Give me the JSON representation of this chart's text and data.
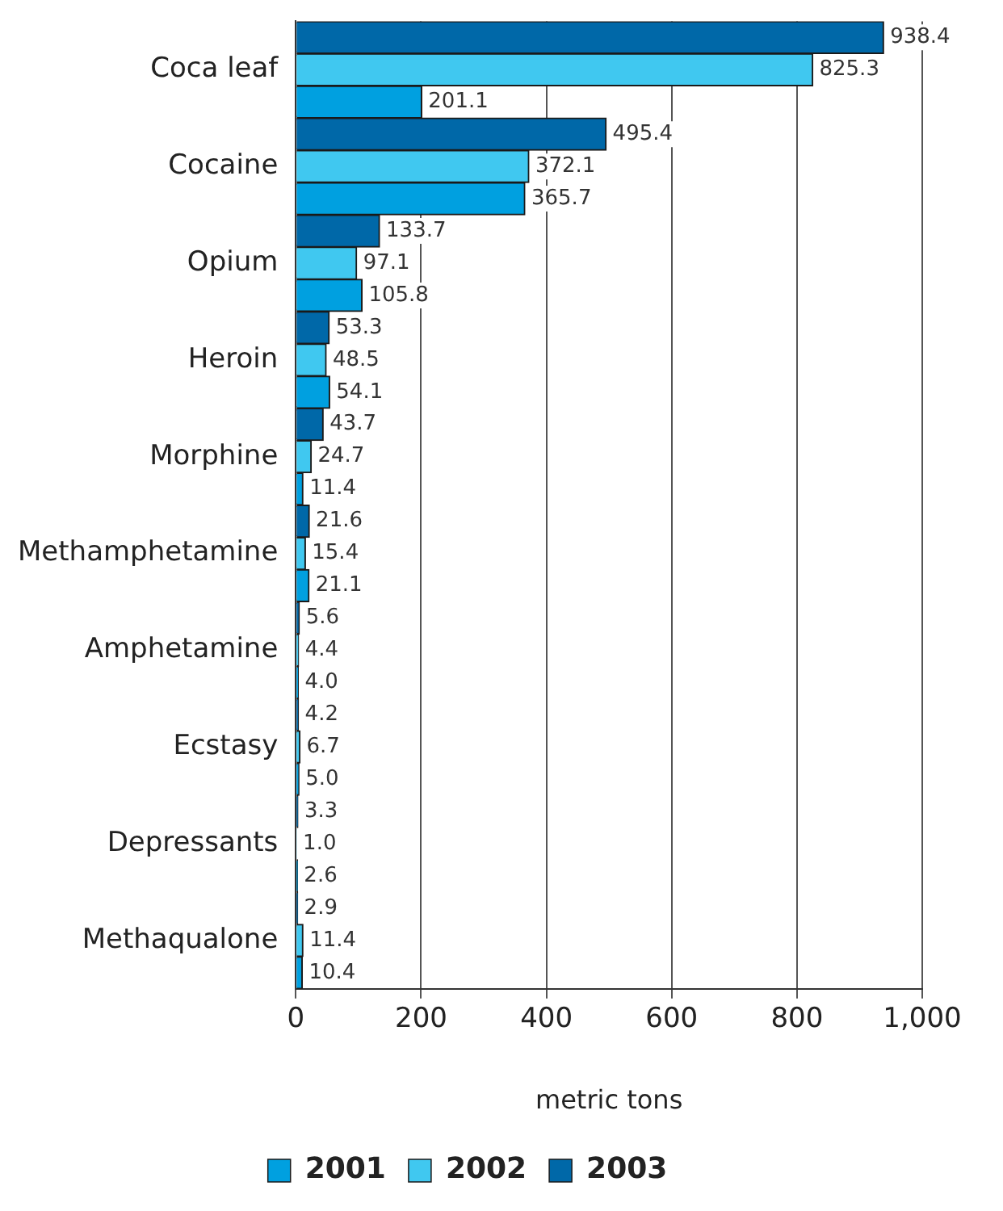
{
  "chart_data": {
    "type": "bar",
    "orientation": "horizontal",
    "xlabel": "metric tons",
    "categories": [
      "Coca leaf",
      "Cocaine",
      "Opium",
      "Heroin",
      "Morphine",
      "Methamphetamine",
      "Amphetamine",
      "Ecstasy",
      "Depressants",
      "Methaqualone"
    ],
    "series": [
      {
        "name": "2001",
        "color": "#00a0e0",
        "values": [
          201.1,
          365.7,
          105.8,
          54.1,
          11.4,
          21.1,
          4.0,
          5.0,
          2.6,
          10.4
        ],
        "value_labels": [
          "201.1",
          "365.7",
          "105.8",
          "54.1",
          "11.4",
          "21.1",
          "4.0",
          "5.0",
          "2.6",
          "10.4"
        ]
      },
      {
        "name": "2002",
        "color": "#40c8f0",
        "values": [
          825.3,
          372.1,
          97.1,
          48.5,
          24.7,
          15.4,
          4.4,
          6.7,
          1.0,
          11.4
        ],
        "value_labels": [
          "825.3",
          "372.1",
          "97.1",
          "48.5",
          "24.7",
          "15.4",
          "4.4",
          "6.7",
          "1.0",
          "11.4"
        ]
      },
      {
        "name": "2003",
        "color": "#0068a8",
        "values": [
          938.4,
          495.4,
          133.7,
          53.3,
          43.7,
          21.6,
          5.6,
          4.2,
          3.3,
          2.9
        ],
        "value_labels": [
          "938.4",
          "495.4",
          "133.7",
          "53.3",
          "43.7",
          "21.6",
          "5.6",
          "4.2",
          "3.3",
          "2.9"
        ]
      }
    ],
    "xlim": [
      0,
      1000
    ],
    "xticks": [
      0,
      200,
      400,
      600,
      800,
      {
        "value": 1000,
        "label": "1,000"
      }
    ],
    "grid": "x",
    "legend": "bottom"
  }
}
